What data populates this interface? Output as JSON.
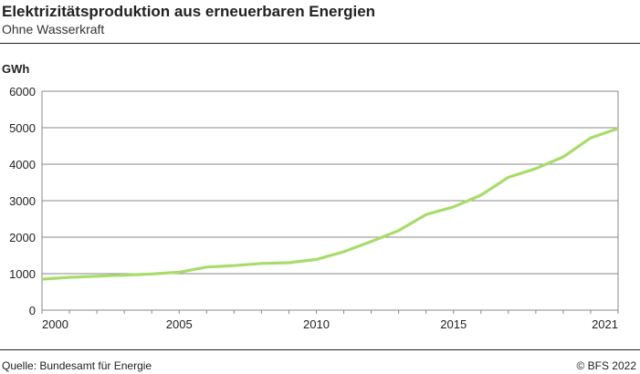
{
  "chart_data": {
    "type": "line",
    "title": "Elektrizitätsproduktion aus erneuerbaren Energien",
    "subtitle": "Ohne Wasserkraft",
    "ylabel": "GWh",
    "xlabel": "",
    "ylim": [
      0,
      6000
    ],
    "xlim": [
      2000,
      2021
    ],
    "yticks": [
      0,
      1000,
      2000,
      3000,
      4000,
      5000,
      6000
    ],
    "xticks": [
      2000,
      2005,
      2010,
      2015,
      2021
    ],
    "grid": true,
    "series": [
      {
        "name": "Elektrizitätsproduktion",
        "color": "#a8dc6a",
        "x": [
          2000,
          2001,
          2002,
          2003,
          2004,
          2005,
          2006,
          2007,
          2008,
          2009,
          2010,
          2011,
          2012,
          2013,
          2014,
          2015,
          2016,
          2017,
          2018,
          2019,
          2020,
          2021
        ],
        "values": [
          850,
          900,
          930,
          960,
          990,
          1040,
          1180,
          1220,
          1280,
          1300,
          1390,
          1600,
          1880,
          2180,
          2620,
          2830,
          3150,
          3640,
          3880,
          4200,
          4720,
          4980
        ]
      }
    ]
  },
  "footer": {
    "source": "Quelle: Bundesamt für Energie",
    "copyright": "© BFS 2022"
  }
}
